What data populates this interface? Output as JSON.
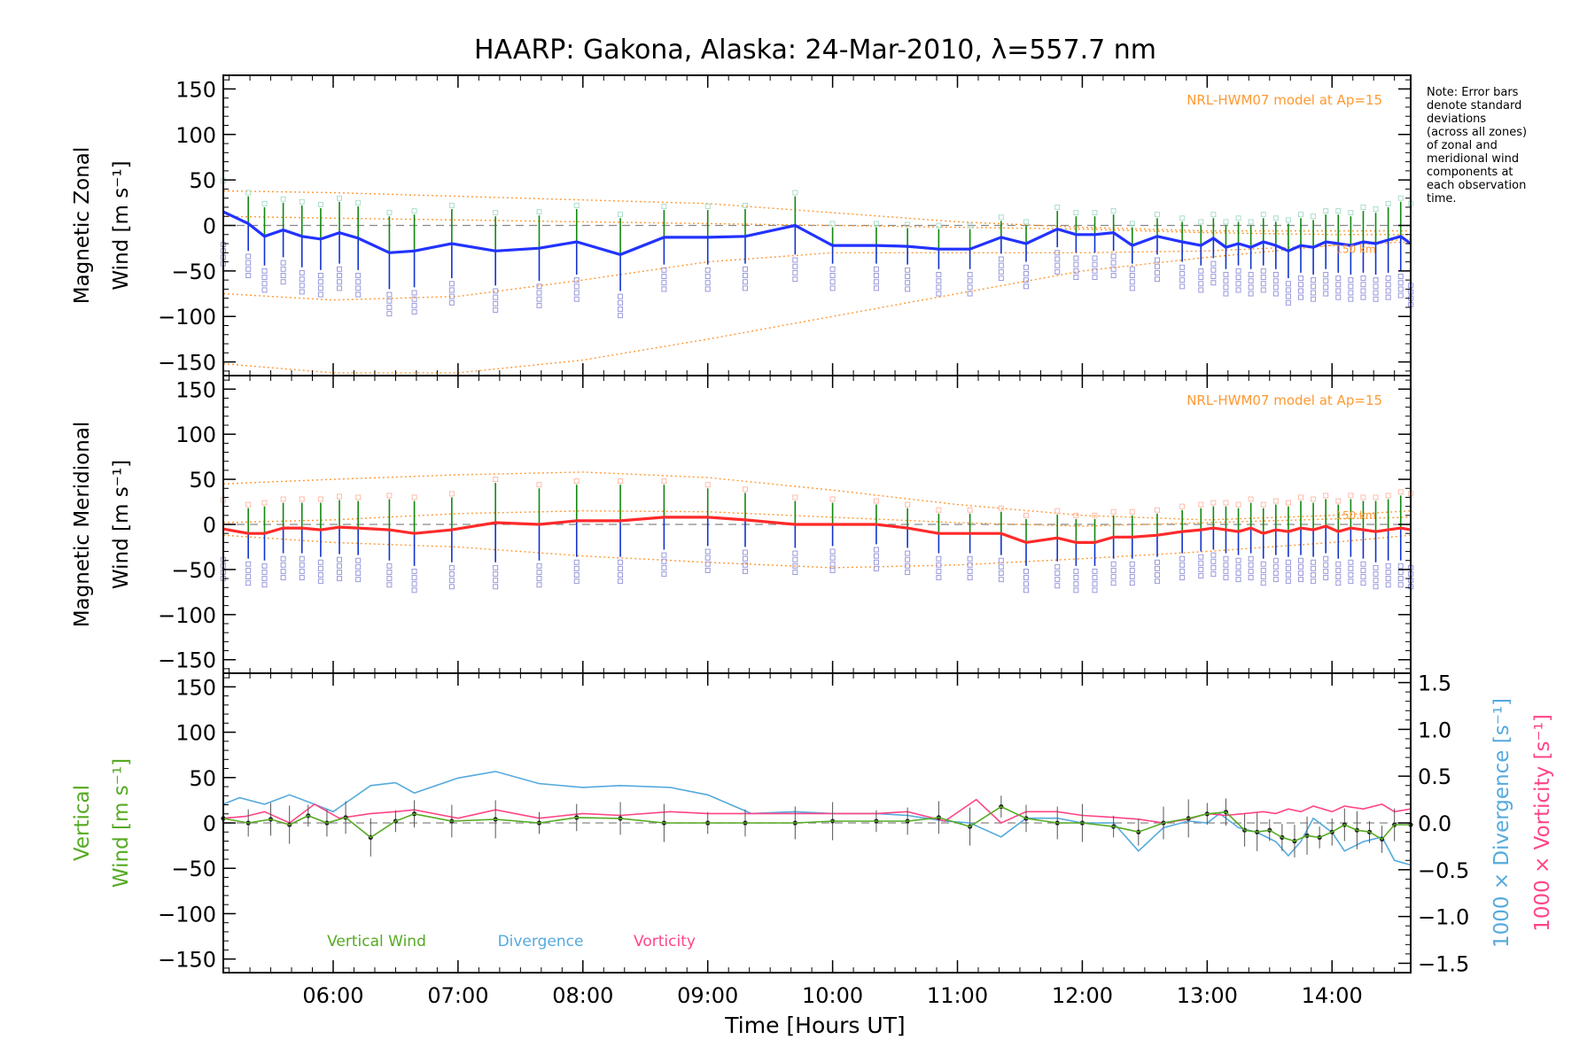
{
  "title": "HAARP: Gakona,  Alaska: 24-Mar-2010, λ=557.7 nm",
  "note": [
    "Note: Error bars",
    "denote standard",
    "deviations",
    "(across all zones)",
    "of zonal and",
    "meridional wind",
    "components at",
    "each observation",
    "time."
  ],
  "xaxis": {
    "label": "Time [Hours UT]",
    "range": [
      5.12,
      14.63
    ],
    "ticks": [
      {
        "v": 6,
        "label": "06:00"
      },
      {
        "v": 7,
        "label": "07:00"
      },
      {
        "v": 8,
        "label": "08:00"
      },
      {
        "v": 9,
        "label": "09:00"
      },
      {
        "v": 10,
        "label": "10:00"
      },
      {
        "v": 11,
        "label": "11:00"
      },
      {
        "v": 12,
        "label": "12:00"
      },
      {
        "v": 13,
        "label": "13:00"
      },
      {
        "v": 14,
        "label": "14:00"
      }
    ]
  },
  "colors": {
    "zonal": "#2233ff",
    "meridional": "#ff2a2a",
    "vertical": "#55aa22",
    "divergence": "#55aadd",
    "vorticity": "#ff4488",
    "model": "#ff9933",
    "zones": "#9999dd",
    "ticks_green": "#118811",
    "ticks_blue": "#1133cc"
  },
  "chart_data": [
    {
      "type": "line",
      "panel": "zonal",
      "ylabel": [
        "Magnetic Zonal",
        "Wind [m s⁻¹]"
      ],
      "ylim": [
        -165,
        165
      ],
      "yticks": [
        {
          "v": 150,
          "label": "150"
        },
        {
          "v": 100,
          "label": "100"
        },
        {
          "v": 50,
          "label": "50"
        },
        {
          "v": 0,
          "label": "0"
        },
        {
          "v": -50,
          "label": "−50"
        },
        {
          "v": -100,
          "label": "−100"
        },
        {
          "v": -150,
          "label": "−150"
        }
      ],
      "model_label": "NRL-HWM07 model at Ap=15",
      "model_annotation": "150 km",
      "x": [
        5.12,
        5.32,
        5.45,
        5.6,
        5.75,
        5.9,
        6.05,
        6.2,
        6.45,
        6.65,
        6.95,
        7.3,
        7.65,
        7.95,
        8.3,
        8.65,
        9.0,
        9.3,
        9.7,
        10.0,
        10.35,
        10.6,
        10.85,
        11.1,
        11.35,
        11.55,
        11.8,
        11.95,
        12.1,
        12.25,
        12.4,
        12.6,
        12.8,
        12.95,
        13.05,
        13.15,
        13.25,
        13.35,
        13.45,
        13.55,
        13.65,
        13.75,
        13.85,
        13.95,
        14.05,
        14.15,
        14.25,
        14.35,
        14.45,
        14.55,
        14.63
      ],
      "y": [
        15,
        2,
        -12,
        -5,
        -12,
        -15,
        -8,
        -14,
        -30,
        -28,
        -20,
        -28,
        -25,
        -18,
        -32,
        -13,
        -13,
        -12,
        0,
        -22,
        -22,
        -23,
        -26,
        -26,
        -13,
        -20,
        -4,
        -10,
        -10,
        -8,
        -22,
        -12,
        -18,
        -22,
        -14,
        -24,
        -20,
        -24,
        -18,
        -22,
        -28,
        -22,
        -24,
        -18,
        -20,
        -22,
        -18,
        -20,
        -16,
        -12,
        -20
      ],
      "errors": [
        30,
        30,
        32,
        30,
        34,
        34,
        34,
        35,
        40,
        40,
        38,
        38,
        36,
        36,
        40,
        30,
        30,
        30,
        32,
        20,
        20,
        20,
        22,
        22,
        18,
        20,
        20,
        20,
        20,
        20,
        20,
        20,
        22,
        22,
        22,
        24,
        24,
        24,
        26,
        26,
        30,
        30,
        30,
        30,
        32,
        32,
        34,
        34,
        36,
        38,
        40
      ],
      "model_curves": [
        {
          "x": [
            5.12,
            6.0,
            7.0,
            8.0,
            9.0,
            10.0,
            11.0,
            12.0,
            13.0,
            14.0,
            14.63
          ],
          "y": [
            38,
            36,
            32,
            28,
            24,
            14,
            4,
            -2,
            -6,
            -6,
            -6
          ]
        },
        {
          "x": [
            5.12,
            6.0,
            7.0,
            8.0,
            9.0,
            10.0,
            11.0,
            12.0,
            13.0,
            14.0,
            14.63
          ],
          "y": [
            -75,
            -82,
            -78,
            -60,
            -40,
            -30,
            -30,
            -30,
            -28,
            -22,
            -18
          ]
        },
        {
          "x": [
            5.12,
            6.0,
            7.0,
            8.0,
            9.0,
            10.0,
            11.0,
            12.0,
            13.0,
            14.0,
            14.63
          ],
          "y": [
            -152,
            -162,
            -162,
            -148,
            -125,
            -100,
            -75,
            -50,
            -35,
            -22,
            -15
          ]
        },
        {
          "x": [
            5.12,
            6.0,
            7.0,
            8.0,
            9.0,
            10.0,
            11.0,
            12.0,
            13.0,
            14.0,
            14.63
          ],
          "y": [
            10,
            8,
            6,
            4,
            2,
            0,
            -2,
            -4,
            -8,
            -10,
            -10
          ]
        }
      ]
    },
    {
      "type": "line",
      "panel": "meridional",
      "ylabel": [
        "Magnetic Meridional",
        "Wind [m s⁻¹]"
      ],
      "ylim": [
        -165,
        165
      ],
      "yticks": [
        {
          "v": 150,
          "label": "150"
        },
        {
          "v": 100,
          "label": "100"
        },
        {
          "v": 50,
          "label": "50"
        },
        {
          "v": 0,
          "label": "0"
        },
        {
          "v": -50,
          "label": "−50"
        },
        {
          "v": -100,
          "label": "−100"
        },
        {
          "v": -150,
          "label": "−150"
        }
      ],
      "model_label": "NRL-HWM07 model at Ap=15",
      "model_annotation": "150 km",
      "x": [
        5.12,
        5.32,
        5.45,
        5.6,
        5.75,
        5.9,
        6.05,
        6.2,
        6.45,
        6.65,
        6.95,
        7.3,
        7.65,
        7.95,
        8.3,
        8.65,
        9.0,
        9.3,
        9.7,
        10.0,
        10.35,
        10.6,
        10.85,
        11.1,
        11.35,
        11.55,
        11.8,
        11.95,
        12.1,
        12.25,
        12.4,
        12.6,
        12.8,
        12.95,
        13.05,
        13.15,
        13.25,
        13.35,
        13.45,
        13.55,
        13.65,
        13.75,
        13.85,
        13.95,
        14.05,
        14.15,
        14.25,
        14.35,
        14.45,
        14.55,
        14.63
      ],
      "y": [
        -5,
        -10,
        -10,
        -4,
        -4,
        -6,
        -3,
        -4,
        -6,
        -10,
        -6,
        2,
        0,
        4,
        4,
        8,
        8,
        5,
        0,
        0,
        0,
        -4,
        -10,
        -10,
        -10,
        -20,
        -15,
        -20,
        -20,
        -14,
        -14,
        -12,
        -8,
        -6,
        -4,
        -6,
        -8,
        -4,
        -10,
        -6,
        -8,
        -4,
        -6,
        -2,
        -8,
        -4,
        -6,
        -8,
        -6,
        -4,
        -6
      ],
      "errors": [
        28,
        28,
        30,
        28,
        28,
        30,
        30,
        30,
        34,
        36,
        36,
        44,
        40,
        40,
        40,
        36,
        32,
        30,
        26,
        24,
        22,
        22,
        22,
        22,
        24,
        26,
        26,
        26,
        26,
        24,
        24,
        24,
        24,
        24,
        24,
        26,
        26,
        28,
        28,
        28,
        28,
        30,
        30,
        30,
        30,
        32,
        32,
        34,
        34,
        36,
        36
      ],
      "model_curves": [
        {
          "x": [
            5.12,
            6.0,
            7.0,
            8.0,
            9.0,
            10.0,
            11.0,
            12.0,
            13.0,
            14.0,
            14.63
          ],
          "y": [
            45,
            50,
            55,
            58,
            52,
            38,
            22,
            10,
            5,
            10,
            15
          ]
        },
        {
          "x": [
            5.12,
            6.0,
            7.0,
            8.0,
            9.0,
            10.0,
            11.0,
            12.0,
            13.0,
            14.0,
            14.63
          ],
          "y": [
            -12,
            -20,
            -25,
            -35,
            -42,
            -48,
            -45,
            -38,
            -30,
            -20,
            -12
          ]
        },
        {
          "x": [
            5.12,
            6.0,
            7.0,
            8.0,
            9.0,
            10.0,
            11.0,
            12.0,
            13.0,
            14.0,
            14.63
          ],
          "y": [
            2,
            5,
            12,
            15,
            14,
            8,
            2,
            -2,
            2,
            6,
            8
          ]
        }
      ]
    },
    {
      "type": "line",
      "panel": "vertical",
      "ylabel_left": [
        "Vertical",
        "Wind [m s⁻¹]"
      ],
      "ylabel_right_1": "1000 × Divergence [s⁻¹]",
      "ylabel_right_2": "1000 × Vorticity [s⁻¹]",
      "ylim": [
        -165,
        165
      ],
      "ylim_right": [
        -1.6,
        1.6
      ],
      "yticks": [
        {
          "v": 150,
          "label": "150"
        },
        {
          "v": 100,
          "label": "100"
        },
        {
          "v": 50,
          "label": "50"
        },
        {
          "v": 0,
          "label": "0"
        },
        {
          "v": -50,
          "label": "−50"
        },
        {
          "v": -100,
          "label": "−100"
        },
        {
          "v": -150,
          "label": "−150"
        }
      ],
      "yticks_right": [
        {
          "v": 1.5,
          "label": "1.5"
        },
        {
          "v": 1.0,
          "label": "1.0"
        },
        {
          "v": 0.5,
          "label": "0.5"
        },
        {
          "v": 0.0,
          "label": "0.0"
        },
        {
          "v": -0.5,
          "label": "−0.5"
        },
        {
          "v": -1.0,
          "label": "−1.0"
        },
        {
          "v": -1.5,
          "label": "−1.5"
        }
      ],
      "legend": [
        "Vertical Wind",
        "Divergence",
        "Vorticity"
      ],
      "vertical": {
        "x": [
          5.12,
          5.32,
          5.5,
          5.65,
          5.8,
          5.95,
          6.1,
          6.3,
          6.5,
          6.65,
          6.95,
          7.3,
          7.65,
          7.95,
          8.3,
          8.65,
          9.0,
          9.3,
          9.7,
          10.0,
          10.35,
          10.6,
          10.85,
          11.1,
          11.35,
          11.55,
          11.8,
          12.0,
          12.25,
          12.45,
          12.65,
          12.85,
          13.0,
          13.15,
          13.3,
          13.4,
          13.5,
          13.6,
          13.7,
          13.8,
          13.9,
          14.0,
          14.1,
          14.2,
          14.3,
          14.4,
          14.5,
          14.63
        ],
        "y": [
          5,
          0,
          4,
          -2,
          8,
          0,
          6,
          -16,
          2,
          10,
          2,
          4,
          0,
          6,
          5,
          0,
          0,
          0,
          0,
          2,
          2,
          2,
          6,
          -4,
          18,
          5,
          0,
          0,
          -4,
          -10,
          0,
          5,
          10,
          12,
          -8,
          -10,
          -8,
          -16,
          -20,
          -14,
          -16,
          -10,
          -2,
          -8,
          -10,
          -18,
          -2,
          -2
        ]
      },
      "divergence": {
        "x": [
          5.12,
          5.25,
          5.45,
          5.65,
          5.85,
          6.0,
          6.3,
          6.5,
          6.65,
          7.0,
          7.3,
          7.65,
          8.0,
          8.3,
          8.7,
          9.0,
          9.35,
          9.7,
          10.0,
          10.35,
          10.6,
          10.9,
          11.1,
          11.35,
          11.55,
          11.8,
          12.0,
          12.25,
          12.45,
          12.65,
          12.85,
          13.0,
          13.1,
          13.25,
          13.4,
          13.55,
          13.65,
          13.75,
          13.85,
          14.0,
          14.1,
          14.25,
          14.4,
          14.5,
          14.63
        ],
        "y": [
          0.2,
          0.27,
          0.2,
          0.3,
          0.2,
          0.12,
          0.4,
          0.43,
          0.32,
          0.48,
          0.55,
          0.42,
          0.38,
          0.4,
          0.38,
          0.3,
          0.1,
          0.12,
          0.1,
          0.1,
          0.08,
          0.02,
          0.0,
          -0.15,
          0.05,
          0.05,
          0.0,
          0.0,
          -0.3,
          -0.05,
          0.02,
          0.0,
          0.1,
          -0.05,
          -0.1,
          -0.2,
          -0.35,
          -0.2,
          0.05,
          -0.1,
          -0.3,
          -0.2,
          -0.15,
          -0.4,
          -0.45
        ]
      },
      "vorticity": {
        "x": [
          5.12,
          5.3,
          5.45,
          5.65,
          5.85,
          6.05,
          6.3,
          6.5,
          6.65,
          7.0,
          7.3,
          7.65,
          8.0,
          8.3,
          8.7,
          9.0,
          9.35,
          9.7,
          10.0,
          10.35,
          10.6,
          10.9,
          11.15,
          11.35,
          11.55,
          11.8,
          12.0,
          12.25,
          12.45,
          12.65,
          12.85,
          13.0,
          13.15,
          13.3,
          13.45,
          13.55,
          13.65,
          13.75,
          13.85,
          14.0,
          14.1,
          14.25,
          14.4,
          14.5,
          14.63
        ],
        "y": [
          0.05,
          0.07,
          0.12,
          0.0,
          0.2,
          0.05,
          0.1,
          0.12,
          0.14,
          0.05,
          0.14,
          0.05,
          0.1,
          0.08,
          0.12,
          0.1,
          0.1,
          0.1,
          0.1,
          0.1,
          0.12,
          0.02,
          0.25,
          0.0,
          0.12,
          0.12,
          0.08,
          0.06,
          0.04,
          0.0,
          0.04,
          0.1,
          0.08,
          0.1,
          0.12,
          0.1,
          0.15,
          0.12,
          0.18,
          0.12,
          0.18,
          0.15,
          0.2,
          0.12,
          0.15
        ]
      }
    }
  ]
}
